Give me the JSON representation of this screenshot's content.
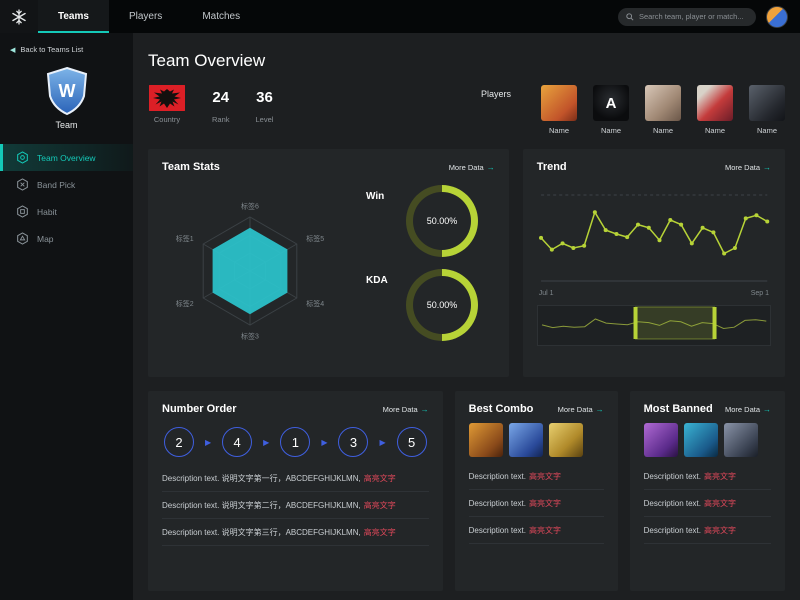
{
  "colors": {
    "accent": "#14c9b8",
    "lime": "#b7d337",
    "blue": "#3f5fe0",
    "red": "#e0485a"
  },
  "icons": {
    "back_arrow": "◀",
    "seq_arrow": "▶",
    "more_arrow": "→"
  },
  "topnav": {
    "tabs": [
      {
        "label": "Teams",
        "active": true
      },
      {
        "label": "Players",
        "active": false
      },
      {
        "label": "Matches",
        "active": false
      }
    ],
    "search_placeholder": "Search team, player or match..."
  },
  "sidebar": {
    "back_link": "Back to Teams List",
    "logo_letter": "W",
    "team_name": "Team",
    "items": [
      {
        "label": "Team Overview",
        "active": true
      },
      {
        "label": "Band Pick",
        "active": false
      },
      {
        "label": "Habit",
        "active": false
      },
      {
        "label": "Map",
        "active": false
      }
    ]
  },
  "header": {
    "title": "Team Overview"
  },
  "team_info": {
    "country_label": "Country",
    "rank_value": "24",
    "rank_label": "Rank",
    "level_value": "36",
    "level_label": "Level"
  },
  "players": {
    "label": "Players",
    "items": [
      {
        "name": "Name"
      },
      {
        "name": "Name",
        "avatar_letter": "A"
      },
      {
        "name": "Name"
      },
      {
        "name": "Name"
      },
      {
        "name": "Name"
      }
    ]
  },
  "team_stats": {
    "title": "Team Stats",
    "more_label": "More Data",
    "gauges": [
      {
        "label": "Win",
        "display": "50.00%",
        "pct": 50
      },
      {
        "label": "KDA",
        "display": "50.00%",
        "pct": 50
      }
    ]
  },
  "trend": {
    "title": "Trend",
    "more_label": "More Data",
    "x_start": "Jul 1",
    "x_end": "Sep 1"
  },
  "number_order": {
    "title": "Number Order",
    "more_label": "More Data",
    "sequence": [
      "2",
      "4",
      "1",
      "3",
      "5"
    ],
    "rows": [
      {
        "text": "Description text. 说明文字第一行，ABCDEFGHIJKLMN,",
        "highlight": "高亮文字"
      },
      {
        "text": "Description text. 说明文字第二行，ABCDEFGHIJKLMN,",
        "highlight": "高亮文字"
      },
      {
        "text": "Description text. 说明文字第三行，ABCDEFGHIJKLMN,",
        "highlight": "高亮文字"
      }
    ]
  },
  "best_combo": {
    "title": "Best Combo",
    "more_label": "More Data",
    "rows": [
      {
        "text": "Description text.",
        "highlight": "高亮文字"
      },
      {
        "text": "Description text.",
        "highlight": "高亮文字"
      },
      {
        "text": "Description text.",
        "highlight": "高亮文字"
      }
    ]
  },
  "most_banned": {
    "title": "Most Banned",
    "more_label": "More Data",
    "rows": [
      {
        "text": "Description text.",
        "highlight": "高亮文字"
      },
      {
        "text": "Description text.",
        "highlight": "高亮文字"
      },
      {
        "text": "Description text.",
        "highlight": "高亮文字"
      }
    ]
  },
  "chart_data": [
    {
      "type": "radar",
      "title": "Team Stats radar",
      "labels": [
        "标签1",
        "标签2",
        "标签3",
        "标签4",
        "标签5",
        "标签6"
      ],
      "values": [
        80,
        80,
        80,
        80,
        80,
        80
      ],
      "max": 100,
      "color": "#2bc4cd"
    },
    {
      "type": "donut",
      "items": [
        {
          "label": "Win",
          "value": 50.0
        },
        {
          "label": "KDA",
          "value": 50.0
        }
      ]
    },
    {
      "type": "line",
      "title": "Trend",
      "x_range": [
        "Jul 1",
        "Sep 1"
      ],
      "values": [
        45,
        30,
        38,
        32,
        35,
        78,
        55,
        50,
        46,
        62,
        58,
        42,
        68,
        62,
        38,
        58,
        52,
        25,
        32,
        70,
        74,
        66
      ],
      "ylim": [
        0,
        100
      ],
      "brush_window": [
        0.42,
        0.76
      ],
      "color": "#b7d337"
    }
  ]
}
